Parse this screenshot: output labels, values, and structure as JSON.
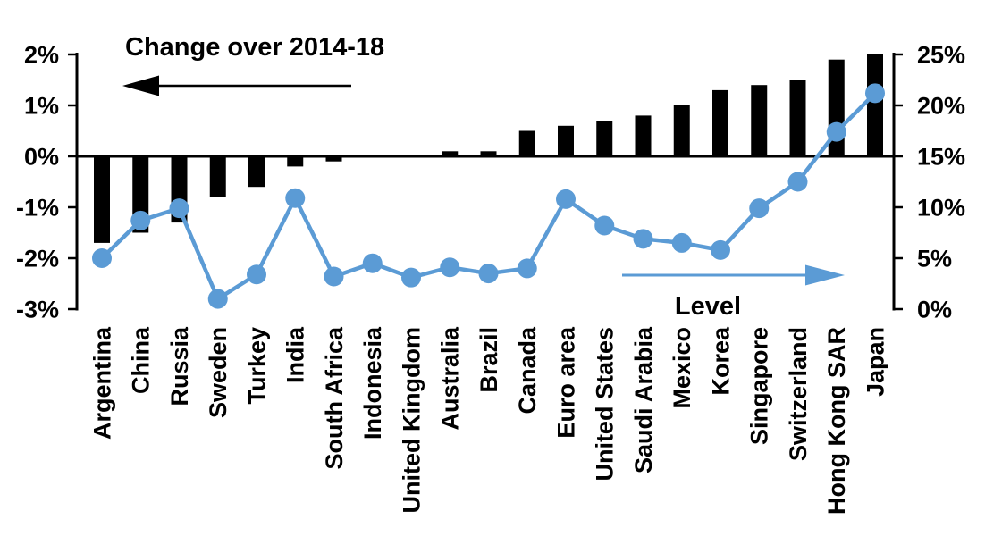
{
  "chart_data": {
    "type": "bar",
    "subtype": "bar-line-combo-dual-axis",
    "categories": [
      "Argentina",
      "China",
      "Russia",
      "Sweden",
      "Turkey",
      "India",
      "South Africa",
      "Indonesia",
      "United Kingdom",
      "Australia",
      "Brazil",
      "Canada",
      "Euro area",
      "United States",
      "Saudi Arabia",
      "Mexico",
      "Korea",
      "Singapore",
      "Switzerland",
      "Hong Kong SAR",
      "Japan"
    ],
    "series": [
      {
        "name": "Change over 2014-18",
        "type": "bar",
        "axis": "left",
        "color": "#000000",
        "values": [
          -1.7,
          -1.5,
          -1.3,
          -0.8,
          -0.6,
          -0.2,
          -0.1,
          0,
          0,
          0.1,
          0.1,
          0.5,
          0.6,
          0.7,
          0.8,
          1.0,
          1.3,
          1.4,
          1.5,
          1.9,
          2.0
        ]
      },
      {
        "name": "Level",
        "type": "line",
        "axis": "right",
        "color": "#5b9bd5",
        "values": [
          5.0,
          8.7,
          9.9,
          1.0,
          3.4,
          10.9,
          3.2,
          4.5,
          3.1,
          4.1,
          3.5,
          4.0,
          10.8,
          8.2,
          6.9,
          6.5,
          5.8,
          9.9,
          12.5,
          17.4,
          21.2
        ]
      }
    ],
    "left_axis": {
      "min": -3,
      "max": 2,
      "tick_step": 1,
      "tick_labels": [
        "2%",
        "1%",
        "0%",
        "-1%",
        "-2%",
        "-3%"
      ]
    },
    "right_axis": {
      "min": 0,
      "max": 25,
      "tick_step": 5,
      "tick_labels": [
        "25%",
        "20%",
        "15%",
        "10%",
        "5%",
        "0%"
      ]
    },
    "annotations": {
      "change_label": "Change over 2014-18",
      "level_label": "Level"
    },
    "grid": false,
    "legend_position": "in-plot annotated arrows"
  },
  "colors": {
    "bar": "#000000",
    "line": "#5b9bd5",
    "background": "#ffffff"
  }
}
